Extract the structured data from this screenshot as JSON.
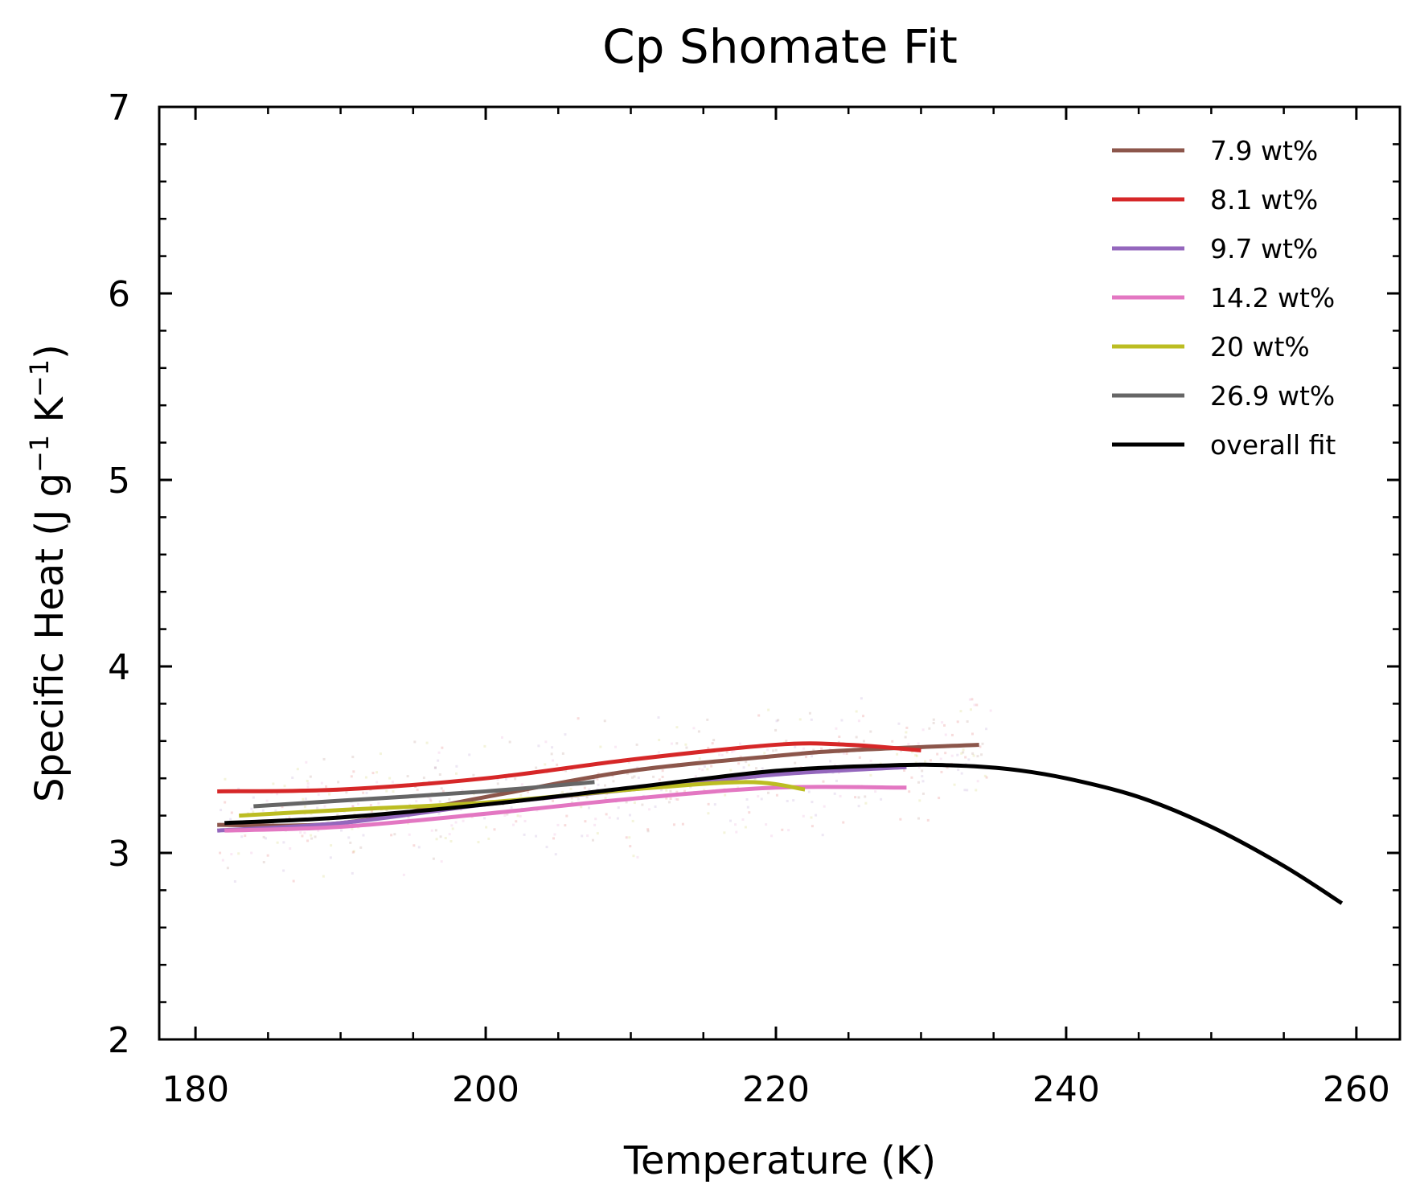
{
  "chart_data": {
    "type": "line",
    "title": "Cp Shomate Fit",
    "xlabel": "Temperature (K)",
    "ylabel": "Specific Heat (J g⁻¹ K⁻¹)",
    "ylabel_parts": {
      "main": "Specific Heat (J g",
      "sup1": "−1",
      "mid": " K",
      "sup2": "−1",
      "end": ")"
    },
    "xlim": [
      177.5,
      263
    ],
    "ylim": [
      2,
      7
    ],
    "x_ticks": [
      180,
      200,
      220,
      240,
      260
    ],
    "x_tick_labels": [
      "180",
      "200",
      "220",
      "240",
      "260"
    ],
    "y_ticks": [
      2,
      3,
      4,
      5,
      6,
      7
    ],
    "y_tick_labels": [
      "2",
      "3",
      "4",
      "5",
      "6",
      "7"
    ],
    "legend_position": "top-right",
    "grid": false,
    "series": [
      {
        "name": "7.9 wt%",
        "color": "#8c564b",
        "x": [
          181.5,
          190,
          200,
          210,
          220,
          225,
          234
        ],
        "y": [
          3.15,
          3.16,
          3.3,
          3.44,
          3.52,
          3.55,
          3.58
        ]
      },
      {
        "name": "8.1 wt%",
        "color": "#d62728",
        "x": [
          181.5,
          190,
          200,
          210,
          220,
          225,
          230
        ],
        "y": [
          3.33,
          3.34,
          3.4,
          3.5,
          3.58,
          3.58,
          3.55
        ]
      },
      {
        "name": "9.7 wt%",
        "color": "#9467bd",
        "x": [
          181.5,
          190,
          200,
          210,
          220,
          229
        ],
        "y": [
          3.12,
          3.16,
          3.26,
          3.34,
          3.42,
          3.46
        ]
      },
      {
        "name": "14.2 wt%",
        "color": "#e377c2",
        "x": [
          182,
          190,
          200,
          210,
          220,
          229
        ],
        "y": [
          3.12,
          3.14,
          3.21,
          3.29,
          3.35,
          3.35
        ]
      },
      {
        "name": "20 wt%",
        "color": "#bcbd22",
        "x": [
          183,
          190,
          200,
          210,
          218,
          222
        ],
        "y": [
          3.2,
          3.23,
          3.27,
          3.34,
          3.38,
          3.34
        ]
      },
      {
        "name": "26.9 wt%",
        "color": "#666666",
        "x": [
          184,
          190,
          200,
          207.5
        ],
        "y": [
          3.25,
          3.28,
          3.33,
          3.38
        ]
      },
      {
        "name": "overall fit",
        "color": "#000000",
        "x": [
          182,
          190,
          200,
          210,
          220,
          228,
          232,
          236,
          240,
          245,
          250,
          255,
          259
        ],
        "y": [
          3.16,
          3.19,
          3.26,
          3.35,
          3.44,
          3.47,
          3.47,
          3.45,
          3.4,
          3.3,
          3.14,
          2.93,
          2.73
        ]
      }
    ],
    "scatter_cloud": {
      "x_range": [
        181.5,
        235
      ],
      "y_range": [
        2.85,
        4.15
      ],
      "note": "faint raw measurement points behind fits"
    }
  }
}
